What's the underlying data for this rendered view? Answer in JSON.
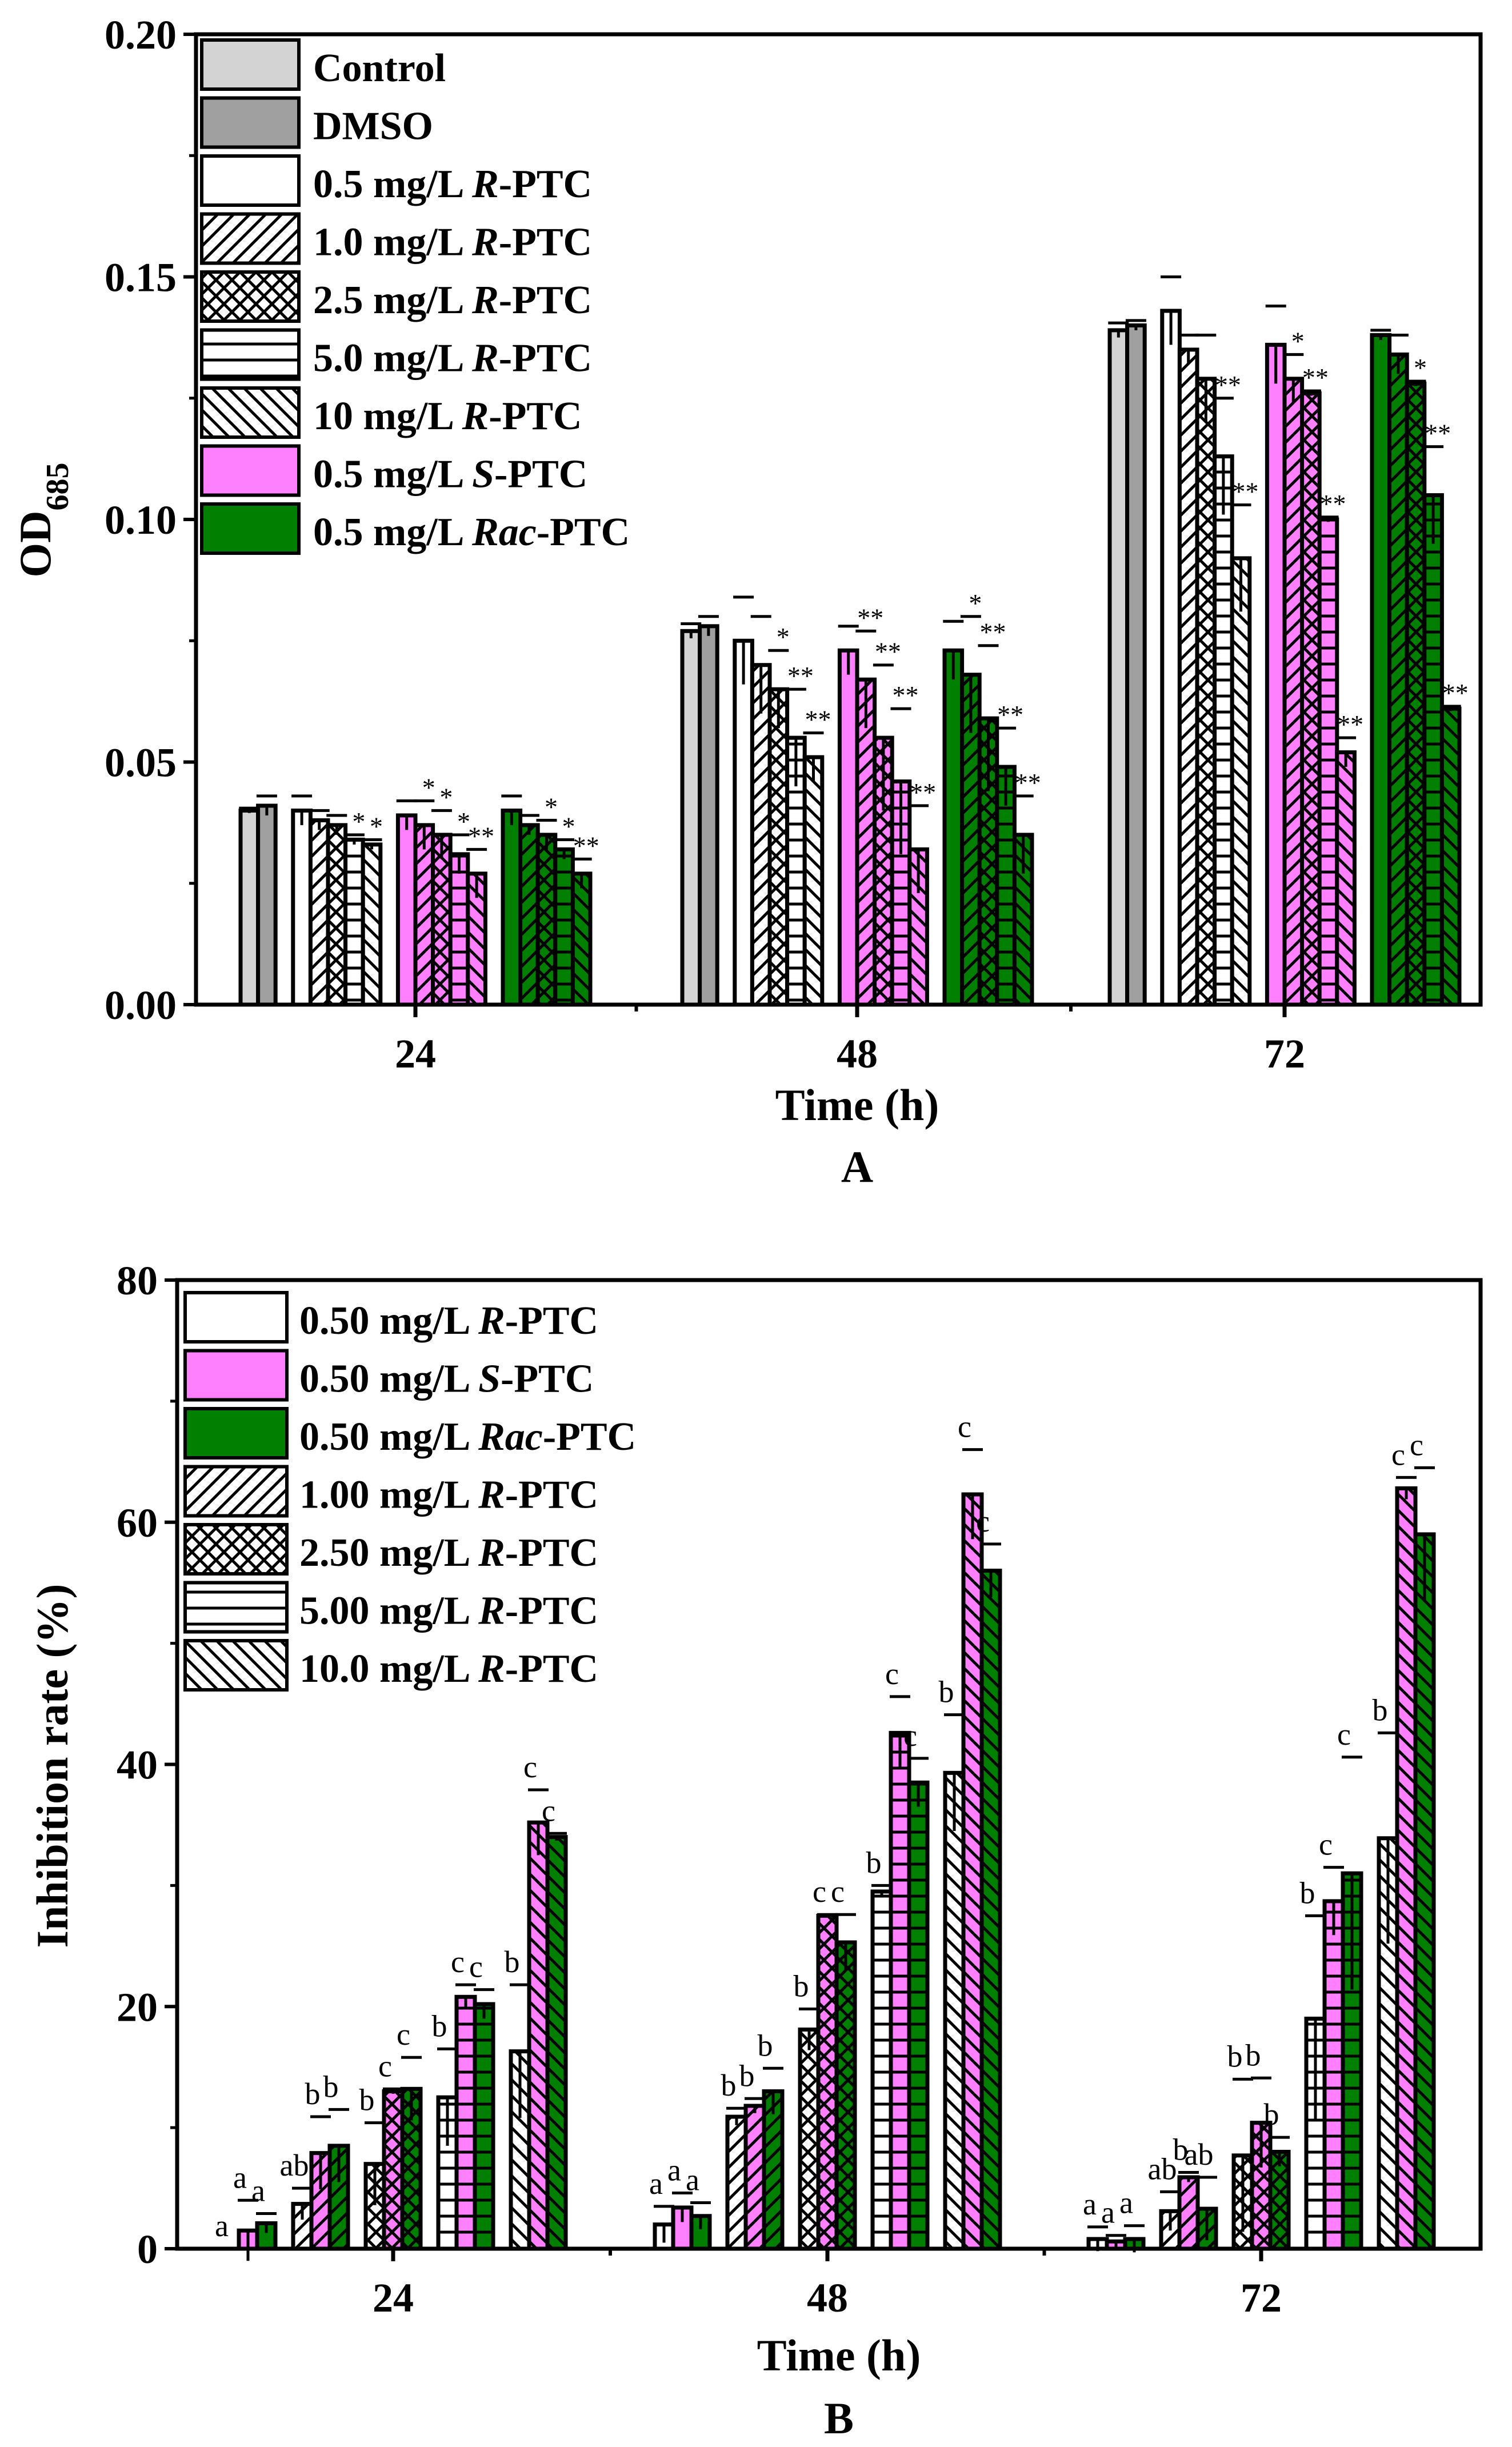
{
  "chart_data": [
    {
      "type": "bar",
      "panel_label": "A",
      "xlabel": "Time (h)",
      "ylabel_main": "OD",
      "ylabel_sub": "685",
      "ylim": [
        0,
        0.2
      ],
      "yticks": [
        "0.00",
        "0.05",
        "0.10",
        "0.15",
        "0.20"
      ],
      "categories": [
        "24",
        "48",
        "72"
      ],
      "legend_position": "top-left",
      "legend": [
        {
          "pre": "Control",
          "it": "",
          "post": ""
        },
        {
          "pre": "DMSO",
          "it": "",
          "post": ""
        },
        {
          "pre": "0.5 mg/L ",
          "it": "R",
          "post": "-PTC"
        },
        {
          "pre": "1.0 mg/L ",
          "it": "R",
          "post": "-PTC"
        },
        {
          "pre": "2.5 mg/L ",
          "it": "R",
          "post": "-PTC"
        },
        {
          "pre": "5.0 mg/L ",
          "it": "R",
          "post": "-PTC"
        },
        {
          "pre": "10  mg/L ",
          "it": "R",
          "post": "-PTC"
        },
        {
          "pre": "0.5 mg/L ",
          "it": "S",
          "post": "-PTC"
        },
        {
          "pre": "0.5 mg/L ",
          "it": "Rac",
          "post": "-PTC"
        }
      ],
      "controls": {
        "Control": {
          "values": [
            0.04,
            0.077,
            0.139
          ],
          "err": [
            0.0005,
            0.0015,
            0.0015
          ]
        },
        "DMSO": {
          "values": [
            0.041,
            0.078,
            0.14
          ],
          "err": [
            0.002,
            0.002,
            0.001
          ]
        }
      },
      "concentrations": [
        "0.5",
        "1.0",
        "2.5",
        "5.0",
        "10"
      ],
      "series": [
        {
          "name": "R-PTC",
          "color": "#ffffff",
          "values": [
            [
              0.04,
              0.038,
              0.037,
              0.034,
              0.033
            ],
            [
              0.075,
              0.07,
              0.065,
              0.055,
              0.051
            ],
            [
              0.143,
              0.135,
              0.129,
              0.113,
              0.092
            ]
          ],
          "err": [
            [
              0.003,
              0.002,
              0.002,
              0.001,
              0.001
            ],
            [
              0.009,
              0.01,
              0.008,
              0.01,
              0.005
            ],
            [
              0.007,
              0.003,
              0.009,
              0.012,
              0.011
            ]
          ],
          "sig": [
            [
              "",
              "",
              "",
              "*",
              "*"
            ],
            [
              "",
              "",
              "*",
              "**",
              "**"
            ],
            [
              "",
              "",
              "",
              "**",
              "**"
            ]
          ]
        },
        {
          "name": "S-PTC",
          "color": "#ff80ff",
          "values": [
            [
              0.039,
              0.037,
              0.035,
              0.031,
              0.027
            ],
            [
              0.073,
              0.067,
              0.055,
              0.046,
              0.032
            ],
            [
              0.136,
              0.129,
              0.126,
              0.1,
              0.052
            ]
          ],
          "err": [
            [
              0.003,
              0.005,
              0.005,
              0.004,
              0.005
            ],
            [
              0.005,
              0.01,
              0.015,
              0.015,
              0.009
            ],
            [
              0.008,
              0.005,
              0.0005,
              0.0005,
              0.003
            ]
          ],
          "sig": [
            [
              "",
              "*",
              "*",
              "*",
              "**"
            ],
            [
              "",
              "**",
              "**",
              "**",
              "**"
            ],
            [
              "",
              "*",
              "**",
              "**",
              "**"
            ]
          ]
        },
        {
          "name": "Rac-PTC",
          "color": "#007f00",
          "values": [
            [
              0.04,
              0.037,
              0.035,
              0.032,
              0.027
            ],
            [
              0.073,
              0.068,
              0.059,
              0.049,
              0.035
            ],
            [
              0.138,
              0.134,
              0.128,
              0.105,
              0.061
            ]
          ],
          "err": [
            [
              0.003,
              0.002,
              0.003,
              0.002,
              0.003
            ],
            [
              0.006,
              0.012,
              0.015,
              0.008,
              0.008
            ],
            [
              0.001,
              0.004,
              0.0005,
              0.01,
              0.0005
            ]
          ],
          "sig": [
            [
              "",
              "",
              "*",
              "*",
              "**"
            ],
            [
              "",
              "*",
              "**",
              "**",
              "**"
            ],
            [
              "",
              "",
              "*",
              "**",
              "**"
            ]
          ]
        }
      ]
    },
    {
      "type": "bar",
      "panel_label": "B",
      "xlabel": "Time (h)",
      "ylabel": "Inhibition rate (%)",
      "ylim": [
        0,
        80
      ],
      "yticks": [
        "0",
        "20",
        "40",
        "60",
        "80"
      ],
      "categories": [
        "24",
        "48",
        "72"
      ],
      "legend_position": "top-left",
      "legend": [
        {
          "pre": "0.50 mg/L ",
          "it": "R",
          "post": "-PTC"
        },
        {
          "pre": "0.50 mg/L ",
          "it": "S",
          "post": "-PTC"
        },
        {
          "pre": "0.50 mg/L ",
          "it": "Rac",
          "post": "-PTC"
        },
        {
          "pre": "1.00 mg/L ",
          "it": "R",
          "post": "-PTC"
        },
        {
          "pre": "2.50 mg/L ",
          "it": "R",
          "post": "-PTC"
        },
        {
          "pre": "5.00 mg/L ",
          "it": "R",
          "post": "-PTC"
        },
        {
          "pre": "10.0 mg/L ",
          "it": "R",
          "post": "-PTC"
        }
      ],
      "concentrations": [
        "0.50",
        "1.00",
        "2.50",
        "5.00",
        "10.0"
      ],
      "series": [
        {
          "name": "R-PTC",
          "color": "#ffffff",
          "values": [
            [
              0.0,
              3.7,
              7.0,
              12.5,
              16.3
            ],
            [
              2.0,
              10.9,
              18.1,
              29.5,
              39.3
            ],
            [
              0.8,
              3.1,
              7.7,
              19.0,
              33.9
            ]
          ],
          "err": [
            [
              0.0,
              1.3,
              3.4,
              4.0,
              5.5
            ],
            [
              1.5,
              0.7,
              1.7,
              0.5,
              4.8
            ],
            [
              1.0,
              1.6,
              6.3,
              8.5,
              8.7
            ]
          ],
          "letters": [
            [
              "a",
              "ab",
              "b",
              "b",
              "b"
            ],
            [
              "a",
              "b",
              "b",
              "b",
              "b"
            ],
            [
              "a",
              "ab",
              "b",
              "b",
              "b"
            ]
          ]
        },
        {
          "name": "S-PTC",
          "color": "#ff80ff",
          "values": [
            [
              1.5,
              7.9,
              13.0,
              20.8,
              35.2
            ],
            [
              3.4,
              11.8,
              27.5,
              42.6,
              62.3
            ],
            [
              0.6,
              5.9,
              10.4,
              28.7,
              62.8
            ]
          ],
          "err": [
            [
              2.5,
              3.0,
              0.2,
              1.0,
              2.7
            ],
            [
              1.2,
              0.6,
              0.1,
              3.0,
              3.7
            ],
            [
              0.5,
              0.4,
              3.7,
              2.8,
              0.9
            ]
          ],
          "letters": [
            [
              "a",
              "b",
              "c",
              "c",
              "c"
            ],
            [
              "a",
              "b",
              "c",
              "c",
              "c"
            ],
            [
              "a",
              "b",
              "b",
              "c",
              "c"
            ]
          ]
        },
        {
          "name": "Rac-PTC",
          "color": "#007f00",
          "values": [
            [
              2.1,
              8.5,
              13.2,
              20.2,
              34.0
            ],
            [
              2.7,
              13.0,
              25.3,
              38.5,
              56.0
            ],
            [
              0.8,
              3.3,
              8.0,
              31.0,
              59.0
            ]
          ],
          "err": [
            [
              0.8,
              3.0,
              2.6,
              1.2,
              0.3
            ],
            [
              1.1,
              1.9,
              2.3,
              2.0,
              2.2
            ],
            [
              1.1,
              2.6,
              1.2,
              9.6,
              5.5
            ]
          ],
          "letters": [
            [
              "a",
              "b",
              "c",
              "c",
              "c"
            ],
            [
              "a",
              "b",
              "c",
              "c",
              "c"
            ],
            [
              "a",
              "ab",
              "b",
              "c",
              "c"
            ]
          ]
        }
      ]
    }
  ]
}
